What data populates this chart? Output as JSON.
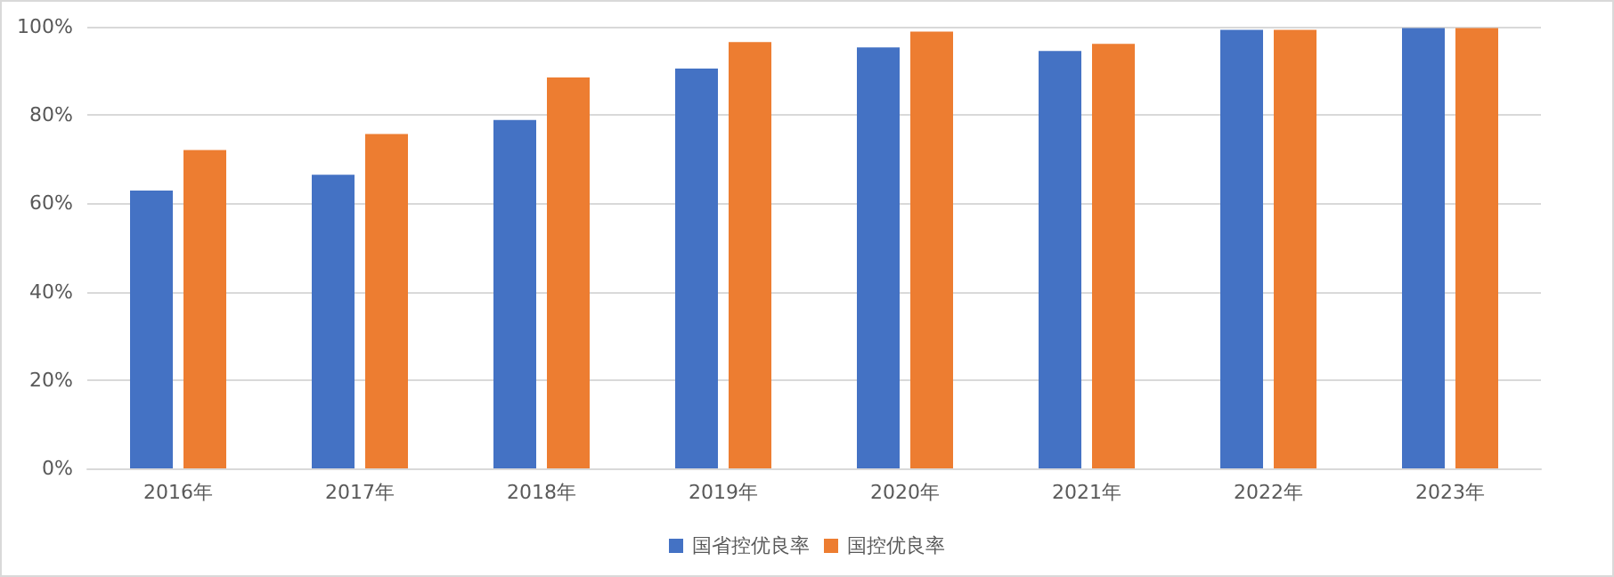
{
  "chart_data": {
    "type": "bar",
    "categories": [
      "2016年",
      "2017年",
      "2018年",
      "2019年",
      "2020年",
      "2021年",
      "2022年",
      "2023年"
    ],
    "series": [
      {
        "name": "国省控优良率",
        "color": "#4472c4",
        "values": [
          62.9,
          66.5,
          78.9,
          90.5,
          95.3,
          94.5,
          99.3,
          99.7
        ]
      },
      {
        "name": "国控优良率",
        "color": "#ed7d31",
        "values": [
          72.1,
          75.7,
          88.5,
          96.5,
          98.9,
          96.1,
          99.3,
          99.7
        ]
      }
    ],
    "ylim": [
      0,
      100
    ],
    "yticks": [
      {
        "value": 0,
        "label": "0%"
      },
      {
        "value": 20,
        "label": "20%"
      },
      {
        "value": 40,
        "label": "40%"
      },
      {
        "value": 60,
        "label": "60%"
      },
      {
        "value": 80,
        "label": "80%"
      },
      {
        "value": 100,
        "label": "100%"
      }
    ],
    "grid": "y",
    "legend": "bottom"
  }
}
